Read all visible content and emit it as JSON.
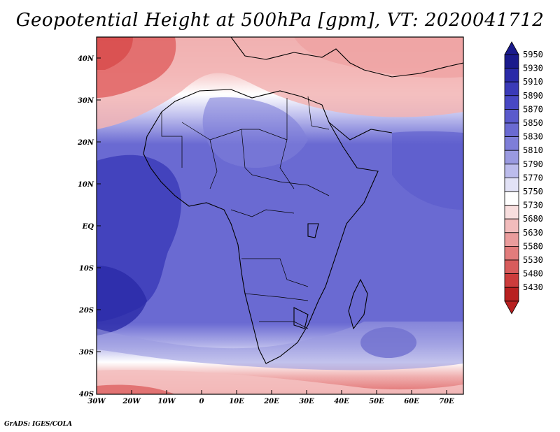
{
  "title": "Geopotential Height at 500hPa [gpm], VT: 2020041712",
  "credit": "GrADS: IGES/COLA",
  "lat_labels": [
    "40N",
    "30N",
    "20N",
    "10N",
    "EQ",
    "10S",
    "20S",
    "30S",
    "40S"
  ],
  "lon_labels": [
    "30W",
    "20W",
    "10W",
    "0",
    "10E",
    "20E",
    "30E",
    "40E",
    "50E",
    "60E",
    "70E"
  ],
  "colorbar": {
    "levels": [
      "5950",
      "5930",
      "5910",
      "5890",
      "5870",
      "5850",
      "5830",
      "5810",
      "5790",
      "5770",
      "5750",
      "5730",
      "5680",
      "5630",
      "5580",
      "5530",
      "5480",
      "5430"
    ],
    "colors": [
      "#1a1a8c",
      "#2a2aa8",
      "#3a3ab8",
      "#4848c4",
      "#5a5acc",
      "#6a6ad2",
      "#7e7ed8",
      "#9a9ae0",
      "#bcbcec",
      "#e2e2f6",
      "#ffffff",
      "#f8dede",
      "#f2bcbc",
      "#ea9c9c",
      "#e27c7c",
      "#d85c5c",
      "#cc3c3c",
      "#b82020"
    ]
  },
  "map_data": {
    "lon_range": [
      -30,
      75
    ],
    "lat_range": [
      -40,
      45
    ],
    "field": "geopotential height 500hPa"
  }
}
